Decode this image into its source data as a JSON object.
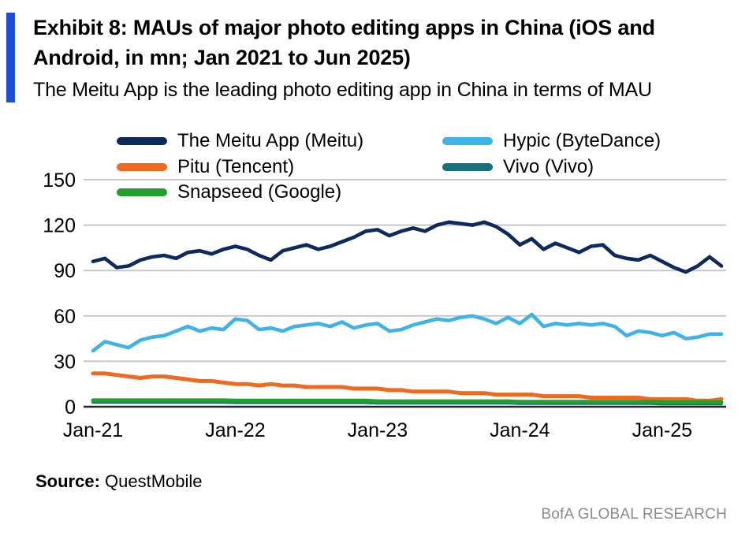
{
  "header": {
    "exhibit_title": "Exhibit 8: MAUs of major photo editing apps in China (iOS and Android, in mn; Jan 2021 to Jun 2025)",
    "subtitle": "The Meitu App is the leading photo editing app in China in terms of MAU",
    "accent_color": "#1b4fd8"
  },
  "source": {
    "label": "Source:",
    "value": " QuestMobile"
  },
  "footer": {
    "text": "BofA GLOBAL RESEARCH"
  },
  "chart_data": {
    "type": "line",
    "title": "MAUs of major photo editing apps in China (iOS and Android, in mn)",
    "xlabel": "",
    "ylabel": "",
    "ylim": [
      0,
      150
    ],
    "yticks": [
      0,
      30,
      60,
      90,
      120,
      150
    ],
    "grid": true,
    "legend_position": "top",
    "grid_color": "#c7c7c7",
    "axis_color": "#262626",
    "xtick_month_indices": [
      0,
      12,
      24,
      36,
      48
    ],
    "xticklabels": [
      "Jan-21",
      "Jan-22",
      "Jan-23",
      "Jan-24",
      "Jan-25"
    ],
    "months": [
      "Jan-21",
      "Feb-21",
      "Mar-21",
      "Apr-21",
      "May-21",
      "Jun-21",
      "Jul-21",
      "Aug-21",
      "Sep-21",
      "Oct-21",
      "Nov-21",
      "Dec-21",
      "Jan-22",
      "Feb-22",
      "Mar-22",
      "Apr-22",
      "May-22",
      "Jun-22",
      "Jul-22",
      "Aug-22",
      "Sep-22",
      "Oct-22",
      "Nov-22",
      "Dec-22",
      "Jan-23",
      "Feb-23",
      "Mar-23",
      "Apr-23",
      "May-23",
      "Jun-23",
      "Jul-23",
      "Aug-23",
      "Sep-23",
      "Oct-23",
      "Nov-23",
      "Dec-23",
      "Jan-24",
      "Feb-24",
      "Mar-24",
      "Apr-24",
      "May-24",
      "Jun-24",
      "Jul-24",
      "Aug-24",
      "Sep-24",
      "Oct-24",
      "Nov-24",
      "Dec-24",
      "Jan-25",
      "Feb-25",
      "Mar-25",
      "Apr-25",
      "May-25",
      "Jun-25"
    ],
    "series": [
      {
        "name": "The Meitu App (Meitu)",
        "color": "#0d2a5e",
        "values": [
          96,
          98,
          92,
          93,
          97,
          99,
          100,
          98,
          102,
          103,
          101,
          104,
          106,
          104,
          100,
          97,
          103,
          105,
          107,
          104,
          106,
          109,
          112,
          116,
          117,
          113,
          116,
          118,
          116,
          120,
          122,
          121,
          120,
          122,
          119,
          114,
          107,
          111,
          104,
          108,
          105,
          102,
          106,
          107,
          100,
          98,
          97,
          100,
          96,
          92,
          89,
          93,
          99,
          93
        ]
      },
      {
        "name": "Hypic (ByteDance)",
        "color": "#3fb3e8",
        "values": [
          37,
          43,
          41,
          39,
          44,
          46,
          47,
          50,
          53,
          50,
          52,
          51,
          58,
          57,
          51,
          52,
          50,
          53,
          54,
          55,
          53,
          56,
          52,
          54,
          55,
          50,
          51,
          54,
          56,
          58,
          57,
          59,
          60,
          58,
          55,
          59,
          55,
          61,
          53,
          55,
          54,
          55,
          54,
          55,
          53,
          47,
          50,
          49,
          47,
          49,
          45,
          46,
          48,
          48
        ]
      },
      {
        "name": "Pitu (Tencent)",
        "color": "#ed6a1f",
        "values": [
          22,
          22,
          21,
          20,
          19,
          20,
          20,
          19,
          18,
          17,
          17,
          16,
          15,
          15,
          14,
          15,
          14,
          14,
          13,
          13,
          13,
          13,
          12,
          12,
          12,
          11,
          11,
          10,
          10,
          10,
          10,
          9,
          9,
          9,
          8,
          8,
          8,
          8,
          7,
          7,
          7,
          7,
          6,
          6,
          6,
          6,
          6,
          5,
          5,
          5,
          5,
          4,
          4,
          5
        ]
      },
      {
        "name": "Vivo (Vivo)",
        "color": "#17707e",
        "values": [
          3,
          3,
          3,
          3,
          3,
          3,
          3,
          3,
          3,
          3,
          3,
          3,
          2.8,
          2.8,
          2.8,
          2.8,
          2.8,
          2.8,
          2.8,
          2.8,
          2.8,
          2.8,
          2.8,
          2.8,
          2.5,
          2.5,
          2.5,
          2.5,
          2.5,
          2.5,
          2.5,
          2.5,
          2.5,
          2.5,
          2.5,
          2.5,
          2.2,
          2.2,
          2.2,
          2.2,
          2.2,
          2.2,
          2.2,
          2.2,
          2.2,
          2.2,
          2.2,
          2.2,
          2,
          2,
          2,
          2,
          2,
          2
        ]
      },
      {
        "name": "Snapseed (Google)",
        "color": "#1fa12c",
        "values": [
          4.2,
          4.2,
          4.2,
          4.2,
          4.2,
          4.2,
          4.2,
          4.2,
          4.2,
          4.2,
          4.2,
          4.2,
          4,
          4,
          4,
          4,
          4,
          4,
          4,
          4,
          4,
          4,
          4,
          4,
          3.6,
          3.6,
          3.6,
          3.6,
          3.6,
          3.6,
          3.6,
          3.6,
          3.6,
          3.6,
          3.6,
          3.6,
          3.3,
          3.3,
          3.3,
          3.3,
          3.3,
          3.3,
          3.3,
          3.3,
          3.3,
          3.3,
          3.3,
          3.3,
          3,
          3,
          3,
          3,
          3,
          3
        ]
      }
    ]
  }
}
